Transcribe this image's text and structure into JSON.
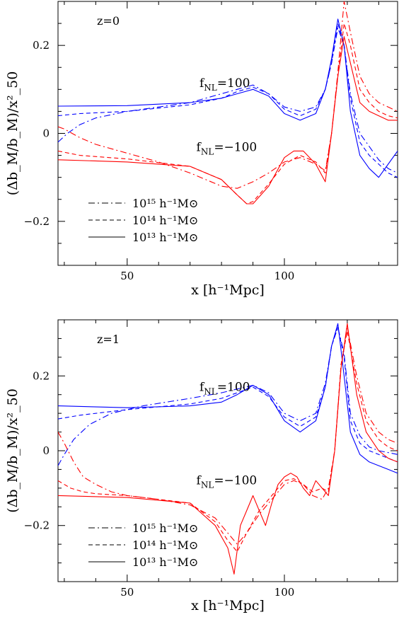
{
  "chart_data": [
    {
      "type": "line",
      "panel_label": "z=0",
      "xlabel": "x  [h⁻¹Mpc]",
      "ylabel": "(Δb_M/b_M)/x²_50",
      "xlim": [
        28,
        136
      ],
      "ylim": [
        -0.3,
        0.3
      ],
      "xticks": [
        50,
        100
      ],
      "yticks": [
        -0.2,
        0,
        0.2
      ],
      "yticklabels": [
        "−0.2",
        "0",
        "0.2"
      ],
      "annotations": [
        {
          "text": "f_NL=100",
          "at": [
            73,
            0.105
          ]
        },
        {
          "text": "f_NL=−100",
          "at": [
            72,
            -0.04
          ]
        }
      ],
      "legend": [
        {
          "label": "10¹⁵ h⁻¹M⊙",
          "dash": "dashdot"
        },
        {
          "label": "10¹⁴ h⁻¹M⊙",
          "dash": "dashed"
        },
        {
          "label": "10¹³ h⁻¹M⊙",
          "dash": "solid"
        }
      ],
      "series": [
        {
          "color": "#0000ff",
          "dash": "solid",
          "x": [
            28,
            50,
            70,
            80,
            85,
            90,
            95,
            100,
            105,
            110,
            113,
            115,
            117,
            119,
            121,
            124,
            127,
            130,
            133,
            136
          ],
          "y": [
            0.062,
            0.063,
            0.07,
            0.08,
            0.09,
            0.1,
            0.085,
            0.045,
            0.03,
            0.045,
            0.1,
            0.17,
            0.26,
            0.2,
            0.05,
            -0.05,
            -0.08,
            -0.1,
            -0.07,
            -0.04
          ]
        },
        {
          "color": "#0000ff",
          "dash": "dashed",
          "x": [
            28,
            35,
            50,
            70,
            80,
            85,
            90,
            95,
            100,
            105,
            110,
            113,
            115,
            117,
            119,
            121,
            124,
            127,
            130,
            133,
            136
          ],
          "y": [
            0.04,
            0.045,
            0.05,
            0.065,
            0.08,
            0.095,
            0.105,
            0.09,
            0.055,
            0.04,
            0.055,
            0.1,
            0.16,
            0.25,
            0.2,
            0.08,
            -0.02,
            -0.05,
            -0.07,
            -0.09,
            -0.1
          ]
        },
        {
          "color": "#0000ff",
          "dash": "dashdot",
          "x": [
            28,
            31,
            35,
            40,
            50,
            70,
            80,
            85,
            90,
            95,
            100,
            105,
            110,
            113,
            115,
            117,
            119,
            121,
            124,
            127,
            130,
            133,
            136
          ],
          "y": [
            -0.02,
            0.0,
            0.02,
            0.035,
            0.05,
            0.07,
            0.09,
            0.1,
            0.11,
            0.09,
            0.06,
            0.05,
            0.06,
            0.1,
            0.16,
            0.24,
            0.2,
            0.09,
            0.0,
            -0.03,
            -0.06,
            -0.08,
            -0.09
          ]
        },
        {
          "color": "#ff0000",
          "dash": "solid",
          "x": [
            28,
            50,
            70,
            80,
            85,
            88,
            90,
            95,
            100,
            103,
            106,
            110,
            113,
            115,
            117,
            119,
            121,
            124,
            127,
            130,
            133,
            136
          ],
          "y": [
            -0.06,
            -0.065,
            -0.075,
            -0.105,
            -0.14,
            -0.16,
            -0.16,
            -0.12,
            -0.055,
            -0.04,
            -0.04,
            -0.07,
            -0.11,
            0.0,
            0.13,
            0.22,
            0.16,
            0.07,
            0.05,
            0.04,
            0.03,
            0.03
          ]
        },
        {
          "color": "#ff0000",
          "dash": "dashed",
          "x": [
            28,
            35,
            50,
            70,
            80,
            85,
            88,
            90,
            95,
            100,
            105,
            110,
            113,
            115,
            117,
            119,
            121,
            124,
            127,
            130,
            133,
            136
          ],
          "y": [
            -0.04,
            -0.05,
            -0.058,
            -0.075,
            -0.105,
            -0.14,
            -0.16,
            -0.155,
            -0.115,
            -0.07,
            -0.05,
            -0.065,
            -0.09,
            0.0,
            0.13,
            0.25,
            0.2,
            0.1,
            0.07,
            0.05,
            0.04,
            0.035
          ]
        },
        {
          "color": "#ff0000",
          "dash": "dashdot",
          "x": [
            28,
            30,
            35,
            40,
            50,
            60,
            70,
            80,
            85,
            90,
            95,
            100,
            105,
            110,
            113,
            115,
            117,
            119,
            121,
            124,
            127,
            130,
            133,
            136
          ],
          "y": [
            0.015,
            0.01,
            -0.01,
            -0.025,
            -0.045,
            -0.065,
            -0.09,
            -0.12,
            -0.125,
            -0.11,
            -0.09,
            -0.065,
            -0.055,
            -0.07,
            -0.085,
            0.0,
            0.14,
            0.3,
            0.23,
            0.13,
            0.09,
            0.07,
            0.06,
            0.05
          ]
        }
      ]
    },
    {
      "type": "line",
      "panel_label": "z=1",
      "xlabel": "x  [h⁻¹Mpc]",
      "ylabel": "(Δb_M/b_M)/x²_50",
      "xlim": [
        28,
        136
      ],
      "ylim": [
        -0.35,
        0.35
      ],
      "xticks": [
        50,
        100
      ],
      "yticks": [
        -0.2,
        0,
        0.2
      ],
      "yticklabels": [
        "−0.2",
        "0",
        "0.2"
      ],
      "annotations": [
        {
          "text": "f_NL=100",
          "at": [
            73,
            0.16
          ]
        },
        {
          "text": "f_NL=−100",
          "at": [
            72,
            -0.09
          ]
        }
      ],
      "legend": [
        {
          "label": "10¹⁵ h⁻¹M⊙",
          "dash": "dashdot"
        },
        {
          "label": "10¹⁴ h⁻¹M⊙",
          "dash": "dashed"
        },
        {
          "label": "10¹³ h⁻¹M⊙",
          "dash": "solid"
        }
      ],
      "series": [
        {
          "color": "#0000ff",
          "dash": "solid",
          "x": [
            28,
            50,
            70,
            80,
            85,
            90,
            95,
            100,
            105,
            110,
            113,
            115,
            117,
            119,
            121,
            124,
            127,
            130,
            133,
            136
          ],
          "y": [
            0.12,
            0.115,
            0.12,
            0.13,
            0.15,
            0.175,
            0.15,
            0.08,
            0.05,
            0.08,
            0.17,
            0.28,
            0.34,
            0.2,
            0.05,
            -0.01,
            -0.03,
            -0.04,
            -0.05,
            -0.06
          ]
        },
        {
          "color": "#0000ff",
          "dash": "dashed",
          "x": [
            28,
            35,
            50,
            70,
            80,
            85,
            90,
            95,
            100,
            105,
            110,
            113,
            115,
            117,
            119,
            121,
            124,
            127,
            130,
            133,
            136
          ],
          "y": [
            0.085,
            0.095,
            0.11,
            0.125,
            0.14,
            0.155,
            0.17,
            0.145,
            0.09,
            0.065,
            0.09,
            0.17,
            0.28,
            0.33,
            0.25,
            0.08,
            0.02,
            0.0,
            -0.01,
            -0.02,
            -0.03
          ]
        },
        {
          "color": "#0000ff",
          "dash": "dashdot",
          "x": [
            28,
            30,
            33,
            38,
            45,
            55,
            70,
            80,
            85,
            90,
            95,
            100,
            105,
            110,
            113,
            115,
            117,
            119,
            121,
            124,
            127,
            130,
            133,
            136
          ],
          "y": [
            -0.04,
            -0.01,
            0.03,
            0.07,
            0.1,
            0.12,
            0.14,
            0.155,
            0.165,
            0.175,
            0.155,
            0.1,
            0.08,
            0.1,
            0.18,
            0.28,
            0.33,
            0.26,
            0.1,
            0.04,
            0.01,
            0.0,
            -0.005,
            -0.01
          ]
        },
        {
          "color": "#ff0000",
          "dash": "solid",
          "x": [
            28,
            50,
            70,
            78,
            82,
            84,
            86,
            88,
            90,
            92,
            94,
            96,
            98,
            100,
            102,
            104,
            106,
            108,
            110,
            112,
            114,
            116,
            118,
            120,
            123,
            126,
            130,
            133,
            136
          ],
          "y": [
            -0.12,
            -0.125,
            -0.14,
            -0.2,
            -0.26,
            -0.33,
            -0.2,
            -0.16,
            -0.12,
            -0.16,
            -0.2,
            -0.14,
            -0.09,
            -0.07,
            -0.06,
            -0.07,
            -0.1,
            -0.12,
            -0.08,
            -0.1,
            -0.12,
            0.0,
            0.22,
            0.34,
            0.15,
            0.05,
            0.0,
            -0.02,
            -0.03
          ]
        },
        {
          "color": "#ff0000",
          "dash": "dashed",
          "x": [
            28,
            32,
            36,
            40,
            50,
            70,
            78,
            82,
            85,
            88,
            92,
            96,
            100,
            103,
            106,
            109,
            112,
            114,
            116,
            118,
            120,
            123,
            126,
            130,
            133,
            136
          ],
          "y": [
            -0.08,
            -0.1,
            -0.11,
            -0.115,
            -0.12,
            -0.14,
            -0.19,
            -0.24,
            -0.27,
            -0.22,
            -0.16,
            -0.12,
            -0.08,
            -0.075,
            -0.09,
            -0.11,
            -0.1,
            -0.11,
            0.0,
            0.23,
            0.32,
            0.18,
            0.08,
            0.03,
            0.01,
            0.0
          ]
        },
        {
          "color": "#ff0000",
          "dash": "dashdot",
          "x": [
            28,
            30,
            33,
            36,
            40,
            45,
            50,
            60,
            70,
            78,
            82,
            85,
            88,
            92,
            96,
            100,
            103,
            106,
            109,
            112,
            114,
            116,
            118,
            120,
            123,
            126,
            130,
            133,
            136
          ],
          "y": [
            0.05,
            0.02,
            -0.03,
            -0.07,
            -0.09,
            -0.11,
            -0.12,
            -0.13,
            -0.145,
            -0.18,
            -0.22,
            -0.25,
            -0.22,
            -0.17,
            -0.13,
            -0.09,
            -0.08,
            -0.09,
            -0.12,
            -0.13,
            -0.1,
            0.0,
            0.22,
            0.33,
            0.2,
            0.1,
            0.05,
            0.03,
            0.02
          ]
        }
      ]
    }
  ]
}
